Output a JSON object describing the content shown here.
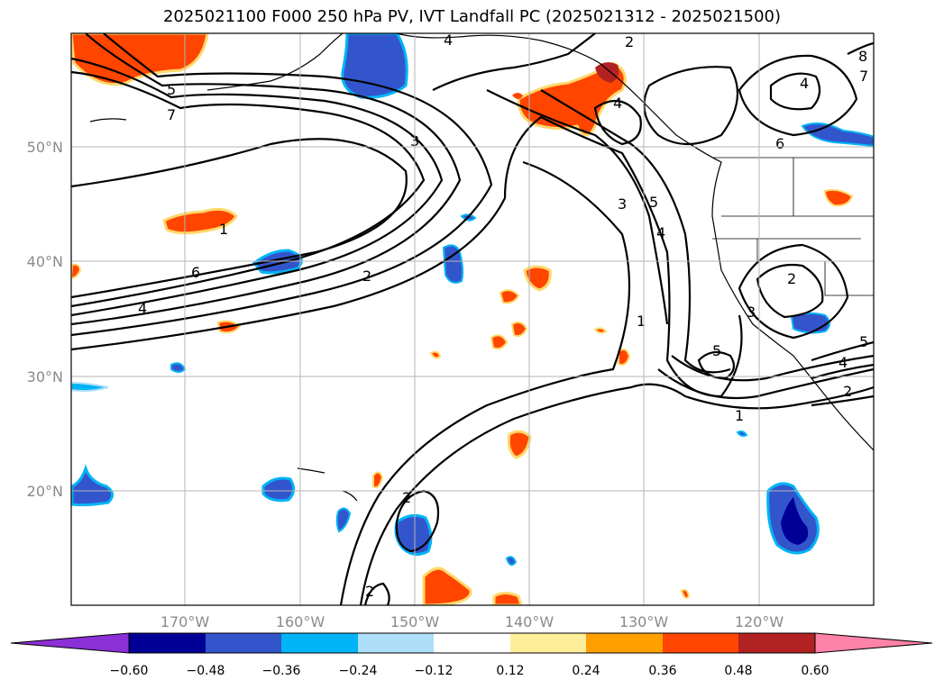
{
  "title": "2025021100 F000 250 hPa PV, IVT Landfall PC (2025021312 - 2025021500)",
  "map": {
    "lat_labels": [
      "50°N",
      "40°N",
      "30°N",
      "20°N"
    ],
    "lon_labels": [
      "170°W",
      "160°W",
      "150°W",
      "140°W",
      "130°W",
      "120°W"
    ],
    "contour_labels": [
      "5",
      "7",
      "4",
      "3",
      "2",
      "1",
      "6",
      "4",
      "2",
      "3",
      "5",
      "4",
      "1",
      "4",
      "6",
      "7",
      "4",
      "8",
      "2",
      "3",
      "5",
      "2",
      "4",
      "5",
      "1",
      "2",
      "2"
    ]
  },
  "colorbar": {
    "colors": [
      "#8b2fd6",
      "#000096",
      "#3355cc",
      "#00b4f5",
      "#aedff8",
      "#ffffff",
      "#ffee99",
      "#ffa000",
      "#ff4500",
      "#b22222",
      "#ff82a8"
    ],
    "tick_labels": [
      "−0.60",
      "−0.48",
      "−0.36",
      "−0.24",
      "−0.12",
      "0.12",
      "0.24",
      "0.36",
      "0.48",
      "0.60"
    ]
  }
}
